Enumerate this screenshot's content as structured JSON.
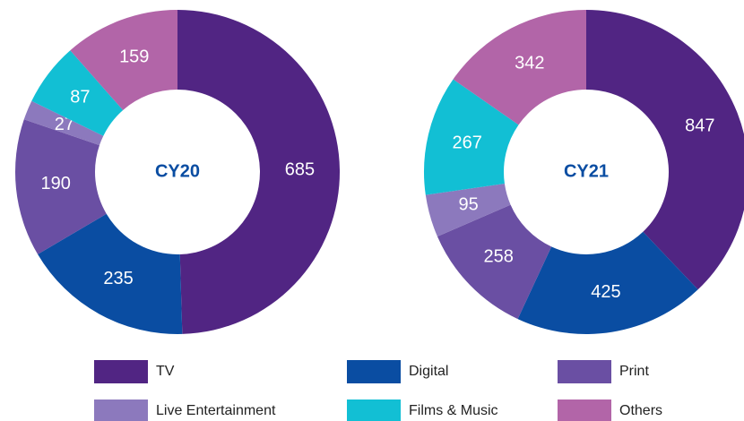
{
  "chart_data": [
    {
      "type": "pie",
      "title": "CY20",
      "categories": [
        "TV",
        "Digital",
        "Print",
        "Live Entertainment",
        "Films & Music",
        "Others"
      ],
      "values": [
        685,
        235,
        190,
        27,
        87,
        159
      ],
      "colors": [
        "#512583",
        "#0a4da2",
        "#6a4fa3",
        "#8c79bd",
        "#12bfd4",
        "#b265a8"
      ]
    },
    {
      "type": "pie",
      "title": "CY21",
      "categories": [
        "TV",
        "Digital",
        "Print",
        "Live Entertainment",
        "Films & Music",
        "Others"
      ],
      "values": [
        847,
        425,
        258,
        95,
        267,
        342
      ],
      "colors": [
        "#512583",
        "#0a4da2",
        "#6a4fa3",
        "#8c79bd",
        "#12bfd4",
        "#b265a8"
      ]
    }
  ]
}
